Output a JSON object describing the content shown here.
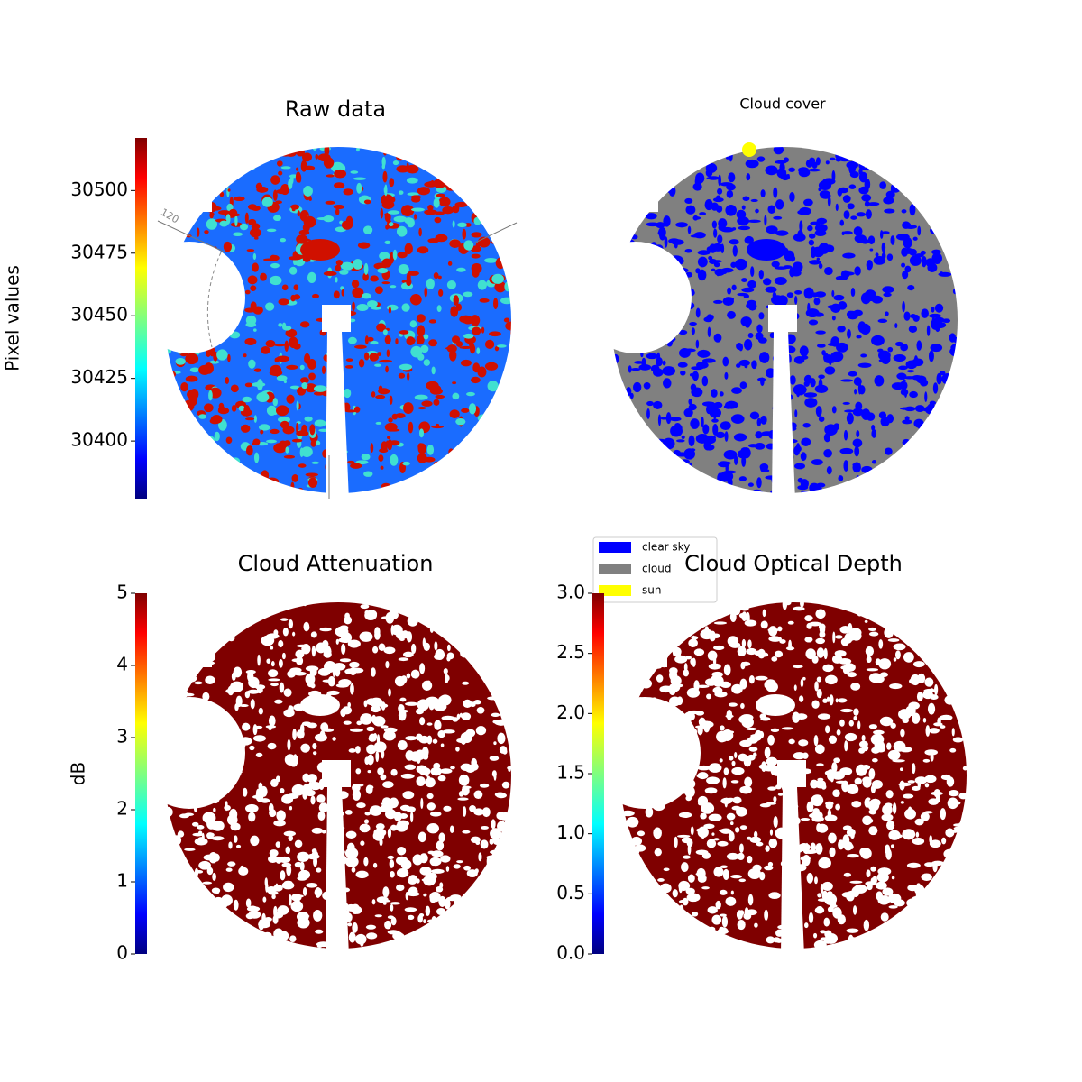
{
  "chart_data": [
    {
      "type": "image",
      "title": "Raw data",
      "colorbar_label": "Pixel values",
      "colormap": "jet",
      "ylim": [
        30377,
        30521
      ],
      "yticks": [
        30400,
        30425,
        30450,
        30475,
        30500
      ],
      "annotations": [
        "120"
      ]
    },
    {
      "type": "image",
      "title": "Cloud cover",
      "legend": [
        {
          "name": "clear sky",
          "color": "#0000ff"
        },
        {
          "name": "cloud",
          "color": "#808080"
        },
        {
          "name": "sun",
          "color": "#ffff00"
        }
      ]
    },
    {
      "type": "image",
      "title": "Cloud Attenuation",
      "colorbar_label": "dB",
      "colormap": "jet",
      "ylim": [
        0,
        5
      ],
      "yticks": [
        0,
        1,
        2,
        3,
        4,
        5
      ]
    },
    {
      "type": "image",
      "title": "Cloud Optical Depth",
      "colormap": "jet",
      "ylim": [
        0,
        3
      ],
      "yticks": [
        {
          "value": 0,
          "label": "0.0"
        },
        0.5,
        {
          "value": 1,
          "label": "1.0"
        },
        1.5,
        {
          "value": 2,
          "label": "2.0"
        },
        2.5,
        {
          "value": 3,
          "label": "3.0"
        }
      ]
    }
  ]
}
